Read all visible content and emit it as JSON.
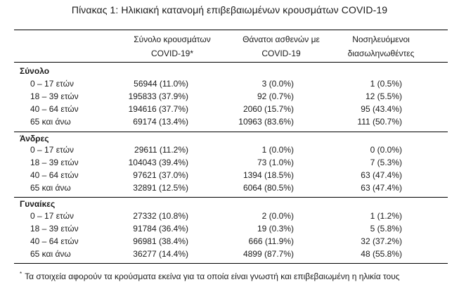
{
  "title": "Πίνακας 1: Ηλικιακή κατανομή επιβεβαιωμένων κρουσμάτων COVID-19",
  "headers": {
    "col1_line1": "Σύνολο κρουσμάτων",
    "col1_line2": "COVID-19*",
    "col2_line1": "Θάνατοι ασθενών με",
    "col2_line2": "COVID-19",
    "col3_line1": "Νοσηλευόμενοι",
    "col3_line2": "διασωληνωθέντες"
  },
  "sections": [
    {
      "label": "Σύνολο",
      "rows": [
        {
          "age": "0 – 17 ετών",
          "cases": "56944 (11.0%)",
          "deaths": "3 (0.0%)",
          "intubated": "1 (0.5%)"
        },
        {
          "age": "18 – 39 ετών",
          "cases": "195833 (37.9%)",
          "deaths": "92 (0.7%)",
          "intubated": "12 (5.5%)"
        },
        {
          "age": "40 – 64 ετών",
          "cases": "194616 (37.7%)",
          "deaths": "2060 (15.7%)",
          "intubated": "95 (43.4%)"
        },
        {
          "age": "65 και άνω",
          "cases": "69174 (13.4%)",
          "deaths": "10963 (83.6%)",
          "intubated": "111 (50.7%)"
        }
      ]
    },
    {
      "label": "Άνδρες",
      "rows": [
        {
          "age": "0 – 17 ετών",
          "cases": "29611 (11.2%)",
          "deaths": "1 (0.0%)",
          "intubated": "0 (0.0%)"
        },
        {
          "age": "18 – 39 ετών",
          "cases": "104043 (39.4%)",
          "deaths": "73 (1.0%)",
          "intubated": "7 (5.3%)"
        },
        {
          "age": "40 – 64 ετών",
          "cases": "97621 (37.0%)",
          "deaths": "1394 (18.5%)",
          "intubated": "63 (47.4%)"
        },
        {
          "age": "65 και άνω",
          "cases": "32891 (12.5%)",
          "deaths": "6064 (80.5%)",
          "intubated": "63 (47.4%)"
        }
      ]
    },
    {
      "label": "Γυναίκες",
      "rows": [
        {
          "age": "0 – 17 ετών",
          "cases": "27332 (10.8%)",
          "deaths": "2 (0.0%)",
          "intubated": "1 (1.2%)"
        },
        {
          "age": "18 – 39 ετών",
          "cases": "91784 (36.4%)",
          "deaths": "19 (0.3%)",
          "intubated": "5 (5.8%)"
        },
        {
          "age": "40 – 64 ετών",
          "cases": "96981 (38.4%)",
          "deaths": "666 (11.9%)",
          "intubated": "32 (37.2%)"
        },
        {
          "age": "65 και άνω",
          "cases": "36277 (14.4%)",
          "deaths": "4899 (87.7%)",
          "intubated": "48 (55.8%)"
        }
      ]
    }
  ],
  "footnote": {
    "marker": "*",
    "text": "Τα στοιχεία αφορούν τα κρούσματα εκείνα για τα οποία είναι γνωστή και επιβεβαιωμένη η ηλικία τους"
  }
}
